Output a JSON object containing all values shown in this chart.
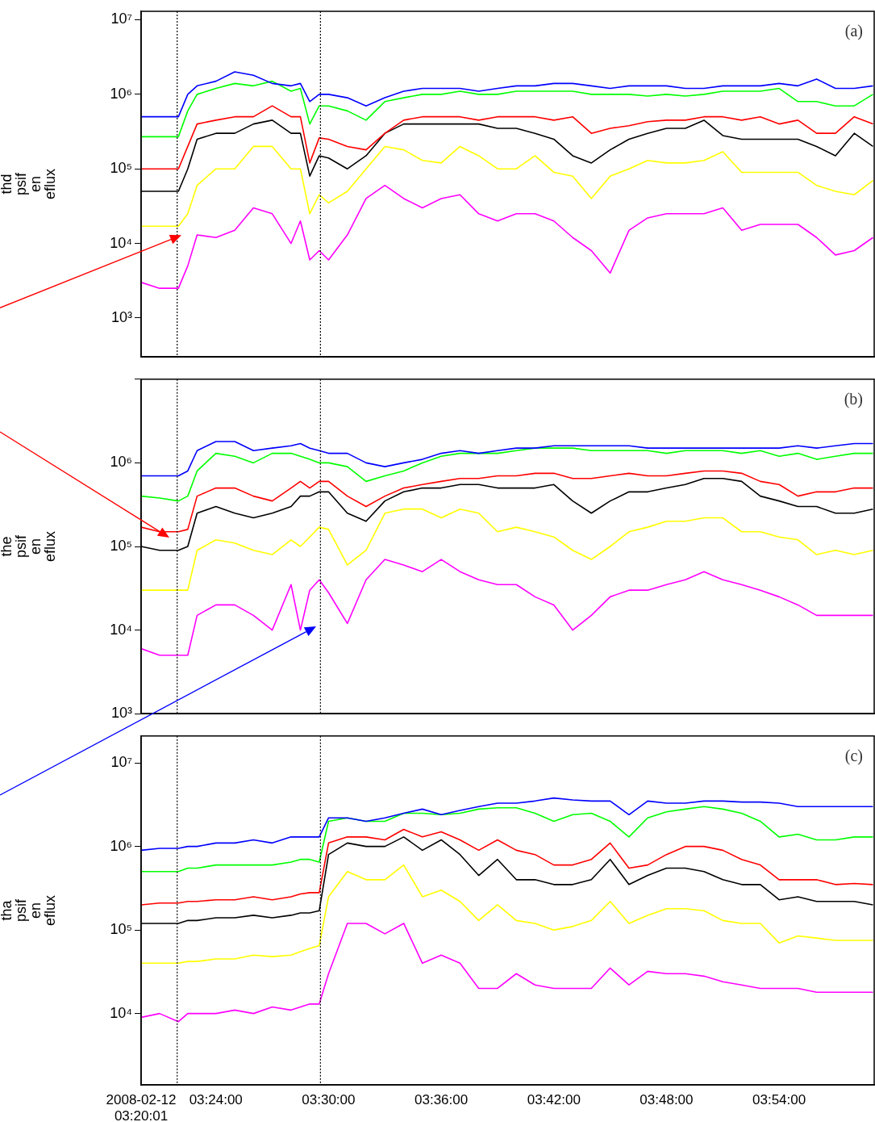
{
  "chart_data": [
    {
      "type": "line",
      "ylabel": "thd psif en eflux",
      "annotations": [
        "(a)"
      ],
      "log": true,
      "tick_labels": "y",
      "xlim": [
        3.3336,
        3.9844
      ],
      "xticks": [
        {
          "value": 3.3336,
          "label": null
        },
        {
          "value": 3.4,
          "label": null
        },
        {
          "value": 3.5,
          "label": null
        },
        {
          "value": 3.6,
          "label": null
        },
        {
          "value": 3.7,
          "label": null
        },
        {
          "value": 3.8,
          "label": null
        },
        {
          "value": 3.9,
          "label": null
        }
      ],
      "ylim": [
        300,
        13000000
      ],
      "yticks": [
        {
          "value": 1000,
          "label": "10³"
        },
        {
          "value": 10000,
          "label": "10⁴"
        },
        {
          "value": 100000,
          "label": "10⁵"
        },
        {
          "value": 1000000,
          "label": "10⁶"
        },
        {
          "value": 10000000,
          "label": "10⁷"
        }
      ],
      "ref_lines": [
        {
          "axis": "x",
          "value": 3.3656,
          "color": "#000000",
          "line_style": "dotted"
        },
        {
          "axis": "x",
          "value": 3.4928,
          "color": "#000000",
          "line_style": "dotted"
        }
      ],
      "x": [
        3.3336,
        3.35,
        3.3667,
        3.375,
        3.3833,
        3.4,
        3.4167,
        3.4333,
        3.45,
        3.4667,
        3.475,
        3.4833,
        3.4917,
        3.5,
        3.5167,
        3.5333,
        3.55,
        3.5667,
        3.5833,
        3.6,
        3.6167,
        3.6333,
        3.65,
        3.6667,
        3.6833,
        3.7,
        3.7167,
        3.7333,
        3.75,
        3.7667,
        3.7833,
        3.8,
        3.8167,
        3.8333,
        3.85,
        3.8667,
        3.8833,
        3.9,
        3.9167,
        3.9333,
        3.95,
        3.9667,
        3.9833
      ],
      "series": [
        {
          "color": "#0000ff",
          "values": [
            500000.0,
            500000.0,
            500000.0,
            1000000.0,
            1300000.0,
            1500000.0,
            2000000.0,
            1800000.0,
            1400000.0,
            1300000.0,
            1400000.0,
            800000.0,
            1000000.0,
            1000000.0,
            900000.0,
            700000.0,
            900000.0,
            1100000.0,
            1200000.0,
            1200000.0,
            1200000.0,
            1100000.0,
            1200000.0,
            1300000.0,
            1300000.0,
            1400000.0,
            1400000.0,
            1300000.0,
            1200000.0,
            1300000.0,
            1300000.0,
            1300000.0,
            1200000.0,
            1200000.0,
            1300000.0,
            1300000.0,
            1300000.0,
            1400000.0,
            1300000.0,
            1600000.0,
            1200000.0,
            1200000.0,
            1300000.0
          ]
        },
        {
          "color": "#00ff00",
          "values": [
            270000.0,
            270000.0,
            270000.0,
            600000.0,
            1000000.0,
            1200000.0,
            1400000.0,
            1300000.0,
            1500000.0,
            1100000.0,
            1200000.0,
            400000.0,
            700000.0,
            700000.0,
            600000.0,
            450000.0,
            800000.0,
            900000.0,
            1000000.0,
            1000000.0,
            1100000.0,
            1000000.0,
            1000000.0,
            1100000.0,
            1100000.0,
            1100000.0,
            1100000.0,
            1000000.0,
            1000000.0,
            1000000.0,
            950000.0,
            1000000.0,
            950000.0,
            1000000.0,
            1100000.0,
            1100000.0,
            1100000.0,
            1200000.0,
            800000.0,
            800000.0,
            700000.0,
            700000.0,
            1000000.0
          ]
        },
        {
          "color": "#ff0000",
          "values": [
            100000.0,
            100000.0,
            100000.0,
            200000.0,
            400000.0,
            450000.0,
            500000.0,
            500000.0,
            700000.0,
            500000.0,
            500000.0,
            120000.0,
            260000.0,
            250000.0,
            200000.0,
            180000.0,
            300000.0,
            450000.0,
            500000.0,
            500000.0,
            500000.0,
            450000.0,
            500000.0,
            500000.0,
            500000.0,
            450000.0,
            500000.0,
            300000.0,
            350000.0,
            380000.0,
            430000.0,
            450000.0,
            450000.0,
            500000.0,
            500000.0,
            450000.0,
            500000.0,
            400000.0,
            450000.0,
            300000.0,
            300000.0,
            500000.0,
            400000.0
          ]
        },
        {
          "color": "#000000",
          "values": [
            50000.0,
            50000.0,
            50000.0,
            100000.0,
            250000.0,
            300000.0,
            300000.0,
            400000.0,
            450000.0,
            300000.0,
            300000.0,
            80000.0,
            150000.0,
            140000.0,
            100000.0,
            150000.0,
            300000.0,
            400000.0,
            400000.0,
            400000.0,
            400000.0,
            400000.0,
            350000.0,
            350000.0,
            300000.0,
            250000.0,
            150000.0,
            120000.0,
            180000.0,
            250000.0,
            300000.0,
            350000.0,
            350000.0,
            450000.0,
            280000.0,
            250000.0,
            250000.0,
            250000.0,
            250000.0,
            200000.0,
            150000.0,
            300000.0,
            200000.0
          ]
        },
        {
          "color": "#ffff00",
          "values": [
            17000.0,
            17000.0,
            17000.0,
            25000.0,
            60000.0,
            100000.0,
            100000.0,
            200000.0,
            200000.0,
            100000.0,
            100000.0,
            25000.0,
            45000.0,
            35000.0,
            50000.0,
            100000.0,
            200000.0,
            180000.0,
            130000.0,
            120000.0,
            200000.0,
            150000.0,
            100000.0,
            100000.0,
            150000.0,
            90000.0,
            80000.0,
            40000.0,
            80000.0,
            100000.0,
            130000.0,
            120000.0,
            120000.0,
            130000.0,
            170000.0,
            90000.0,
            90000.0,
            90000.0,
            90000.0,
            60000.0,
            50000.0,
            45000.0,
            70000.0
          ]
        },
        {
          "color": "#ff00ff",
          "values": [
            3000.0,
            2500.0,
            2500.0,
            5000.0,
            13000.0,
            12000.0,
            15000.0,
            30000.0,
            25000.0,
            10000.0,
            20000.0,
            6000.0,
            8000.0,
            6000.0,
            13000.0,
            40000.0,
            60000.0,
            40000.0,
            30000.0,
            40000.0,
            45000.0,
            25000.0,
            20000.0,
            25000.0,
            25000.0,
            20000.0,
            12000.0,
            8000.0,
            4000.0,
            15000.0,
            22000.0,
            25000.0,
            25000.0,
            25000.0,
            30000.0,
            15000.0,
            18000.0,
            18000.0,
            18000.0,
            12000.0,
            7000.0,
            8000.0,
            12000.0
          ]
        }
      ]
    },
    {
      "type": "line",
      "ylabel": "the psif en eflux",
      "annotations": [
        "(b)"
      ],
      "log": true,
      "tick_labels": "y",
      "xlim": [
        3.3336,
        3.9844
      ],
      "xticks": [
        {
          "value": 3.3336,
          "label": null
        },
        {
          "value": 3.4,
          "label": null
        },
        {
          "value": 3.5,
          "label": null
        },
        {
          "value": 3.6,
          "label": null
        },
        {
          "value": 3.7,
          "label": null
        },
        {
          "value": 3.8,
          "label": null
        },
        {
          "value": 3.9,
          "label": null
        }
      ],
      "ylim": [
        1000,
        10000000
      ],
      "yticks": [
        {
          "value": 1000,
          "label": "10³"
        },
        {
          "value": 10000,
          "label": "10⁴"
        },
        {
          "value": 100000,
          "label": "10⁵"
        },
        {
          "value": 1000000,
          "label": "10⁶"
        },
        {
          "value": 10000000,
          "label": null
        }
      ],
      "ref_lines": [
        {
          "axis": "x",
          "value": 3.3656,
          "color": "#000000",
          "line_style": "dotted"
        },
        {
          "axis": "x",
          "value": 3.4928,
          "color": "#000000",
          "line_style": "dotted"
        }
      ],
      "x": [
        3.3336,
        3.35,
        3.3667,
        3.375,
        3.3833,
        3.4,
        3.4167,
        3.4333,
        3.45,
        3.4667,
        3.475,
        3.4833,
        3.4917,
        3.5,
        3.5167,
        3.5333,
        3.55,
        3.5667,
        3.5833,
        3.6,
        3.6167,
        3.6333,
        3.65,
        3.6667,
        3.6833,
        3.7,
        3.7167,
        3.7333,
        3.75,
        3.7667,
        3.7833,
        3.8,
        3.8167,
        3.8333,
        3.85,
        3.8667,
        3.8833,
        3.9,
        3.9167,
        3.9333,
        3.95,
        3.9667,
        3.9833
      ],
      "series": [
        {
          "color": "#0000ff",
          "values": [
            700000.0,
            700000.0,
            700000.0,
            800000.0,
            1400000.0,
            1800000.0,
            1800000.0,
            1400000.0,
            1500000.0,
            1600000.0,
            1700000.0,
            1500000.0,
            1400000.0,
            1300000.0,
            1300000.0,
            1000000.0,
            900000.0,
            1000000.0,
            1100000.0,
            1300000.0,
            1400000.0,
            1300000.0,
            1400000.0,
            1500000.0,
            1500000.0,
            1600000.0,
            1600000.0,
            1600000.0,
            1600000.0,
            1600000.0,
            1500000.0,
            1500000.0,
            1500000.0,
            1500000.0,
            1500000.0,
            1500000.0,
            1500000.0,
            1500000.0,
            1600000.0,
            1500000.0,
            1600000.0,
            1700000.0,
            1700000.0
          ]
        },
        {
          "color": "#00ff00",
          "values": [
            400000.0,
            380000.0,
            350000.0,
            400000.0,
            800000.0,
            1300000.0,
            1200000.0,
            1000000.0,
            1300000.0,
            1300000.0,
            1200000.0,
            1100000.0,
            1000000.0,
            1000000.0,
            900000.0,
            600000.0,
            700000.0,
            800000.0,
            1000000.0,
            1200000.0,
            1300000.0,
            1300000.0,
            1300000.0,
            1400000.0,
            1500000.0,
            1500000.0,
            1500000.0,
            1400000.0,
            1400000.0,
            1400000.0,
            1400000.0,
            1300000.0,
            1400000.0,
            1400000.0,
            1400000.0,
            1300000.0,
            1400000.0,
            1200000.0,
            1300000.0,
            1100000.0,
            1200000.0,
            1300000.0,
            1300000.0
          ]
        },
        {
          "color": "#ff0000",
          "values": [
            170000.0,
            150000.0,
            150000.0,
            160000.0,
            400000.0,
            500000.0,
            500000.0,
            400000.0,
            350000.0,
            500000.0,
            600000.0,
            500000.0,
            600000.0,
            600000.0,
            400000.0,
            300000.0,
            400000.0,
            500000.0,
            550000.0,
            600000.0,
            650000.0,
            650000.0,
            700000.0,
            700000.0,
            750000.0,
            750000.0,
            650000.0,
            650000.0,
            700000.0,
            750000.0,
            700000.0,
            700000.0,
            750000.0,
            800000.0,
            800000.0,
            750000.0,
            600000.0,
            550000.0,
            400000.0,
            450000.0,
            450000.0,
            500000.0,
            500000.0
          ]
        },
        {
          "color": "#000000",
          "values": [
            100000.0,
            90000.0,
            90000.0,
            100000.0,
            250000.0,
            300000.0,
            250000.0,
            220000.0,
            250000.0,
            300000.0,
            400000.0,
            400000.0,
            450000.0,
            450000.0,
            250000.0,
            200000.0,
            350000.0,
            450000.0,
            500000.0,
            500000.0,
            550000.0,
            550000.0,
            500000.0,
            500000.0,
            500000.0,
            550000.0,
            350000.0,
            250000.0,
            350000.0,
            450000.0,
            450000.0,
            500000.0,
            550000.0,
            650000.0,
            650000.0,
            600000.0,
            400000.0,
            350000.0,
            300000.0,
            300000.0,
            250000.0,
            250000.0,
            280000.0
          ]
        },
        {
          "color": "#ffff00",
          "values": [
            30000.0,
            30000.0,
            30000.0,
            30000.0,
            90000.0,
            120000.0,
            110000.0,
            90000.0,
            80000.0,
            120000.0,
            100000.0,
            130000.0,
            170000.0,
            160000.0,
            60000.0,
            90000.0,
            250000.0,
            280000.0,
            280000.0,
            220000.0,
            280000.0,
            250000.0,
            150000.0,
            170000.0,
            150000.0,
            130000.0,
            90000.0,
            70000.0,
            100000.0,
            150000.0,
            170000.0,
            200000.0,
            200000.0,
            220000.0,
            220000.0,
            150000.0,
            150000.0,
            130000.0,
            120000.0,
            80000.0,
            90000.0,
            80000.0,
            90000.0
          ]
        },
        {
          "color": "#ff00ff",
          "values": [
            6000.0,
            5000.0,
            5000.0,
            5000.0,
            15000.0,
            20000.0,
            20000.0,
            15000.0,
            10000.0,
            35000.0,
            10000.0,
            30000.0,
            40000.0,
            28000.0,
            12000.0,
            40000.0,
            70000.0,
            60000.0,
            50000.0,
            70000.0,
            50000.0,
            40000.0,
            35000.0,
            35000.0,
            25000.0,
            20000.0,
            10000.0,
            15000.0,
            25000.0,
            30000.0,
            30000.0,
            35000.0,
            40000.0,
            50000.0,
            40000.0,
            35000.0,
            30000.0,
            25000.0,
            20000.0,
            15000.0,
            15000.0,
            15000.0,
            15000.0
          ]
        }
      ]
    },
    {
      "type": "line",
      "ylabel": "tha psif en eflux",
      "annotations": [
        "(c)"
      ],
      "log": true,
      "xlim": [
        3.3336,
        3.9844
      ],
      "xticks": [
        {
          "value": 3.3336,
          "label": "2008-02-12 03:20:01"
        },
        {
          "value": 3.4,
          "label": "03:24:00"
        },
        {
          "value": 3.5,
          "label": "03:30:00"
        },
        {
          "value": 3.6,
          "label": "03:36:00"
        },
        {
          "value": 3.7,
          "label": "03:42:00"
        },
        {
          "value": 3.8,
          "label": "03:48:00"
        },
        {
          "value": 3.9,
          "label": "03:54:00"
        }
      ],
      "ylim": [
        1400,
        21000000
      ],
      "yticks": [
        {
          "value": 10000,
          "label": "10⁴"
        },
        {
          "value": 100000,
          "label": "10⁵"
        },
        {
          "value": 1000000,
          "label": "10⁶"
        },
        {
          "value": 10000000,
          "label": "10⁷"
        }
      ],
      "ref_lines": [
        {
          "axis": "x",
          "value": 3.3656,
          "color": "#000000",
          "line_style": "dotted"
        },
        {
          "axis": "x",
          "value": 3.4928,
          "color": "#000000",
          "line_style": "dotted"
        }
      ],
      "x": [
        3.3336,
        3.35,
        3.3667,
        3.375,
        3.3833,
        3.4,
        3.4167,
        3.4333,
        3.45,
        3.4667,
        3.475,
        3.4833,
        3.4917,
        3.5,
        3.5167,
        3.5333,
        3.55,
        3.5667,
        3.5833,
        3.6,
        3.6167,
        3.6333,
        3.65,
        3.6667,
        3.6833,
        3.7,
        3.7167,
        3.7333,
        3.75,
        3.7667,
        3.7833,
        3.8,
        3.8167,
        3.8333,
        3.85,
        3.8667,
        3.8833,
        3.9,
        3.9167,
        3.9333,
        3.95,
        3.9667,
        3.9833
      ],
      "series": [
        {
          "color": "#0000ff",
          "values": [
            900000.0,
            950000.0,
            950000.0,
            1000000.0,
            1000000.0,
            1100000.0,
            1100000.0,
            1200000.0,
            1100000.0,
            1300000.0,
            1300000.0,
            1300000.0,
            1300000.0,
            2200000.0,
            2200000.0,
            2000000.0,
            2200000.0,
            2500000.0,
            2800000.0,
            2400000.0,
            2700000.0,
            3000000.0,
            3300000.0,
            3300000.0,
            3500000.0,
            3800000.0,
            3600000.0,
            3500000.0,
            3500000.0,
            2400000.0,
            3500000.0,
            3300000.0,
            3300000.0,
            3500000.0,
            3500000.0,
            3400000.0,
            3400000.0,
            3300000.0,
            3000000.0,
            3000000.0,
            3000000.0,
            3000000.0,
            3000000.0
          ]
        },
        {
          "color": "#00ff00",
          "values": [
            500000.0,
            500000.0,
            500000.0,
            550000.0,
            550000.0,
            600000.0,
            600000.0,
            600000.0,
            600000.0,
            650000.0,
            700000.0,
            700000.0,
            650000.0,
            2000000.0,
            2200000.0,
            2000000.0,
            2000000.0,
            2500000.0,
            2500000.0,
            2400000.0,
            2500000.0,
            2800000.0,
            2900000.0,
            2900000.0,
            2500000.0,
            2000000.0,
            2400000.0,
            2500000.0,
            2000000.0,
            1300000.0,
            2200000.0,
            2600000.0,
            2800000.0,
            3000000.0,
            2800000.0,
            2500000.0,
            2000000.0,
            1300000.0,
            1400000.0,
            1200000.0,
            1200000.0,
            1300000.0,
            1300000.0
          ]
        },
        {
          "color": "#ff0000",
          "values": [
            200000.0,
            210000.0,
            210000.0,
            220000.0,
            220000.0,
            230000.0,
            230000.0,
            250000.0,
            230000.0,
            250000.0,
            270000.0,
            280000.0,
            280000.0,
            1100000.0,
            1300000.0,
            1300000.0,
            1200000.0,
            1600000.0,
            1300000.0,
            1500000.0,
            1200000.0,
            900000.0,
            1200000.0,
            900000.0,
            800000.0,
            600000.0,
            600000.0,
            700000.0,
            1100000.0,
            550000.0,
            600000.0,
            800000.0,
            1000000.0,
            1000000.0,
            900000.0,
            700000.0,
            600000.0,
            400000.0,
            400000.0,
            400000.0,
            350000.0,
            360000.0,
            350000.0
          ]
        },
        {
          "color": "#000000",
          "values": [
            120000.0,
            120000.0,
            120000.0,
            130000.0,
            130000.0,
            140000.0,
            140000.0,
            150000.0,
            140000.0,
            150000.0,
            160000.0,
            160000.0,
            170000.0,
            800000.0,
            1100000.0,
            1000000.0,
            1000000.0,
            1300000.0,
            900000.0,
            1200000.0,
            800000.0,
            450000.0,
            700000.0,
            400000.0,
            400000.0,
            350000.0,
            350000.0,
            400000.0,
            700000.0,
            350000.0,
            450000.0,
            550000.0,
            550000.0,
            500000.0,
            400000.0,
            350000.0,
            350000.0,
            230000.0,
            250000.0,
            220000.0,
            220000.0,
            220000.0,
            200000.0
          ]
        },
        {
          "color": "#ffff00",
          "values": [
            40000.0,
            40000.0,
            40000.0,
            42000.0,
            42000.0,
            45000.0,
            45000.0,
            50000.0,
            48000.0,
            50000.0,
            55000.0,
            60000.0,
            65000.0,
            250000.0,
            500000.0,
            400000.0,
            400000.0,
            600000.0,
            250000.0,
            300000.0,
            220000.0,
            130000.0,
            200000.0,
            130000.0,
            120000.0,
            100000.0,
            110000.0,
            130000.0,
            220000.0,
            120000.0,
            150000.0,
            180000.0,
            180000.0,
            170000.0,
            130000.0,
            120000.0,
            120000.0,
            70000.0,
            85000.0,
            80000.0,
            75000.0,
            75000.0,
            75000.0
          ]
        },
        {
          "color": "#ff00ff",
          "values": [
            9000.0,
            10000.0,
            8000.0,
            10000.0,
            10000.0,
            10000.0,
            11000.0,
            10000.0,
            12000.0,
            11000.0,
            12000.0,
            13000.0,
            13000.0,
            30000.0,
            120000.0,
            120000.0,
            90000.0,
            120000.0,
            40000.0,
            50000.0,
            40000.0,
            20000.0,
            20000.0,
            30000.0,
            22000.0,
            20000.0,
            20000.0,
            20000.0,
            35000.0,
            22000.0,
            32000.0,
            30000.0,
            30000.0,
            28000.0,
            24000.0,
            22000.0,
            20000.0,
            20000.0,
            20000.0,
            18000.0,
            18000.0,
            18000.0,
            18000.0
          ]
        }
      ]
    }
  ]
}
